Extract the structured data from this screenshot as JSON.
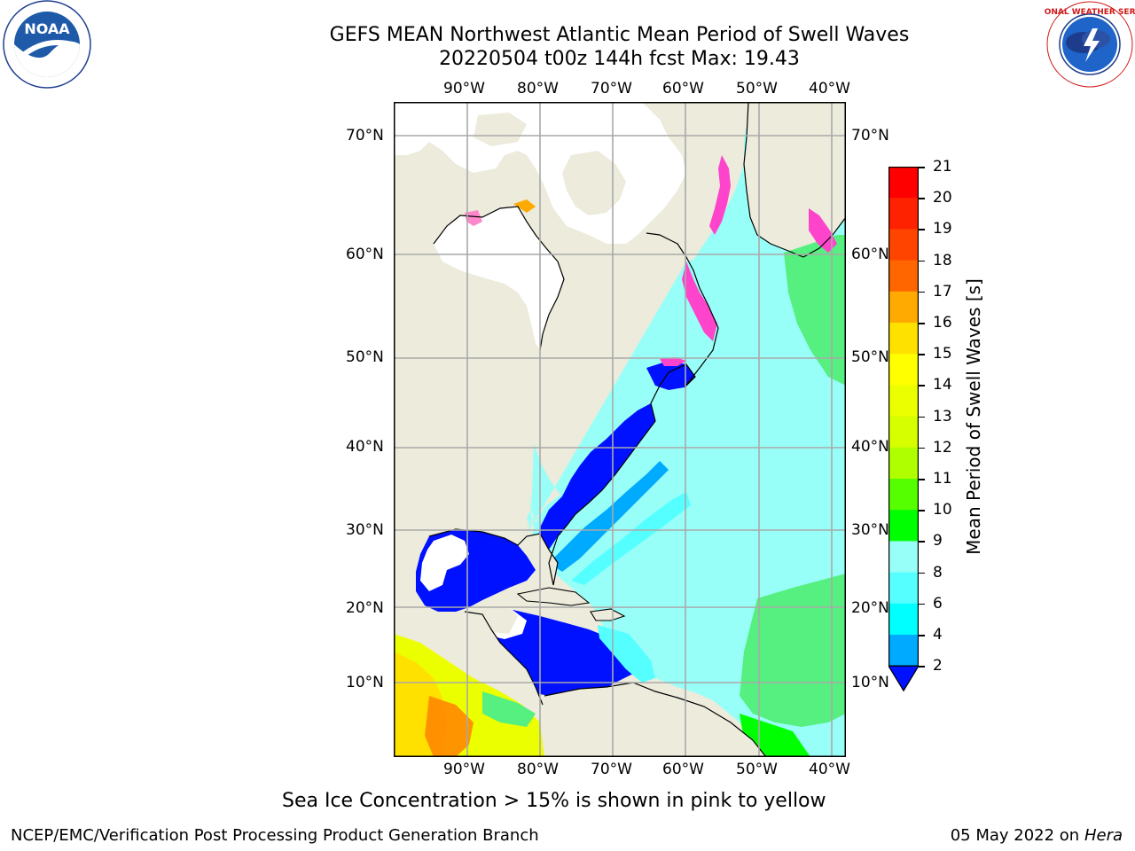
{
  "title": {
    "line1": "GEFS MEAN Northwest Atlantic Mean Period of Swell Waves",
    "line2": "20220504 t00z 144h fcst   Max: 19.43"
  },
  "logos": {
    "left": {
      "text": "NOAA",
      "ring": "NATIONAL OCEANIC AND ATMOSPHERIC ADMINISTRATION · U.S. DEPARTMENT OF COMMERCE"
    },
    "right": {
      "ring": "NATIONAL WEATHER SERVICE"
    }
  },
  "map": {
    "lon_labels": [
      "90°W",
      "80°W",
      "70°W",
      "60°W",
      "50°W",
      "40°W"
    ],
    "lat_labels": [
      "70°N",
      "60°N",
      "50°N",
      "40°N",
      "30°N",
      "20°N",
      "10°N"
    ]
  },
  "colorbar": {
    "label": "Mean Period of Swell Waves [s]",
    "ticks": [
      "21",
      "20",
      "19",
      "18",
      "17",
      "16",
      "15",
      "14",
      "13",
      "12",
      "11",
      "10",
      "9",
      "8",
      "6",
      "4",
      "2"
    ],
    "colors": [
      "#ff0000",
      "#ff2200",
      "#ff4400",
      "#ff6600",
      "#ff8800",
      "#ffaa00",
      "#ffe100",
      "#ffff00",
      "#ecff00",
      "#d6ff00",
      "#b0ff00",
      "#56ff00",
      "#00ff00",
      "#55f07f",
      "#98fff8",
      "#55ffff",
      "#00ffff",
      "#00aaff",
      "#0011ff"
    ]
  },
  "annotations": {
    "sea_ice_note": "Sea Ice Concentration > 15% is shown in pink to yellow",
    "footer_left": "NCEP/EMC/Verification Post Processing Product Generation Branch",
    "footer_right_date": "05 May 2022 on",
    "footer_right_host": "Hera"
  }
}
